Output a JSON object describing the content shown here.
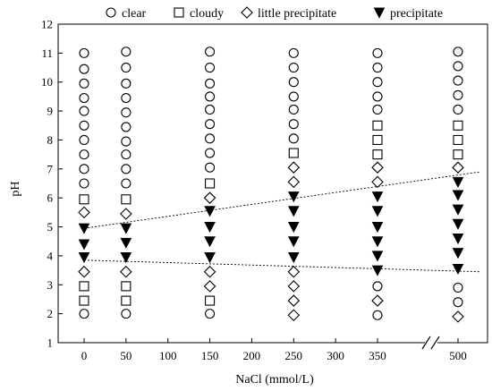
{
  "chart_data": {
    "type": "scatter",
    "title": "",
    "xlabel": "NaCl (mmol/L)",
    "ylabel": "pH",
    "xticks": [
      "0",
      "50",
      "100",
      "150",
      "200",
      "250",
      "300",
      "350",
      "500"
    ],
    "yticks": [
      "1",
      "2",
      "3",
      "4",
      "5",
      "6",
      "7",
      "8",
      "9",
      "10",
      "11",
      "12"
    ],
    "ylim": [
      1,
      12
    ],
    "axis_break": "between 350 and 500",
    "legend": {
      "position": "top",
      "entries": [
        {
          "name": "clear",
          "marker": "open-circle"
        },
        {
          "name": "cloudy",
          "marker": "open-square"
        },
        {
          "name": "little precipitate",
          "marker": "open-diamond"
        },
        {
          "name": "precipitate",
          "marker": "filled-down-triangle"
        }
      ]
    },
    "columns": [
      {
        "nacl": 0,
        "points": [
          {
            "ph": 2.0,
            "c": "clear"
          },
          {
            "ph": 2.45,
            "c": "cloudy"
          },
          {
            "ph": 2.95,
            "c": "cloudy"
          },
          {
            "ph": 3.45,
            "c": "little precipitate"
          },
          {
            "ph": 3.95,
            "c": "precipitate"
          },
          {
            "ph": 4.4,
            "c": "precipitate"
          },
          {
            "ph": 4.95,
            "c": "precipitate"
          },
          {
            "ph": 5.5,
            "c": "little precipitate"
          },
          {
            "ph": 5.95,
            "c": "cloudy"
          },
          {
            "ph": 6.5,
            "c": "clear"
          },
          {
            "ph": 7.0,
            "c": "clear"
          },
          {
            "ph": 7.5,
            "c": "clear"
          },
          {
            "ph": 8.0,
            "c": "clear"
          },
          {
            "ph": 8.5,
            "c": "clear"
          },
          {
            "ph": 9.0,
            "c": "clear"
          },
          {
            "ph": 9.45,
            "c": "clear"
          },
          {
            "ph": 9.95,
            "c": "clear"
          },
          {
            "ph": 10.45,
            "c": "clear"
          },
          {
            "ph": 11.0,
            "c": "clear"
          }
        ]
      },
      {
        "nacl": 50,
        "points": [
          {
            "ph": 2.0,
            "c": "clear"
          },
          {
            "ph": 2.45,
            "c": "cloudy"
          },
          {
            "ph": 2.95,
            "c": "cloudy"
          },
          {
            "ph": 3.45,
            "c": "little precipitate"
          },
          {
            "ph": 3.95,
            "c": "precipitate"
          },
          {
            "ph": 4.45,
            "c": "precipitate"
          },
          {
            "ph": 4.95,
            "c": "precipitate"
          },
          {
            "ph": 5.45,
            "c": "little precipitate"
          },
          {
            "ph": 5.95,
            "c": "cloudy"
          },
          {
            "ph": 6.5,
            "c": "clear"
          },
          {
            "ph": 7.0,
            "c": "clear"
          },
          {
            "ph": 7.5,
            "c": "clear"
          },
          {
            "ph": 7.95,
            "c": "clear"
          },
          {
            "ph": 8.45,
            "c": "clear"
          },
          {
            "ph": 8.95,
            "c": "clear"
          },
          {
            "ph": 9.45,
            "c": "clear"
          },
          {
            "ph": 9.95,
            "c": "clear"
          },
          {
            "ph": 10.5,
            "c": "clear"
          },
          {
            "ph": 11.05,
            "c": "clear"
          }
        ]
      },
      {
        "nacl": 150,
        "points": [
          {
            "ph": 2.0,
            "c": "clear"
          },
          {
            "ph": 2.45,
            "c": "cloudy"
          },
          {
            "ph": 2.95,
            "c": "little precipitate"
          },
          {
            "ph": 3.45,
            "c": "little precipitate"
          },
          {
            "ph": 3.95,
            "c": "precipitate"
          },
          {
            "ph": 4.5,
            "c": "precipitate"
          },
          {
            "ph": 5.0,
            "c": "precipitate"
          },
          {
            "ph": 5.55,
            "c": "precipitate"
          },
          {
            "ph": 6.0,
            "c": "little precipitate"
          },
          {
            "ph": 6.5,
            "c": "cloudy"
          },
          {
            "ph": 7.05,
            "c": "clear"
          },
          {
            "ph": 7.55,
            "c": "clear"
          },
          {
            "ph": 8.05,
            "c": "clear"
          },
          {
            "ph": 8.55,
            "c": "clear"
          },
          {
            "ph": 9.05,
            "c": "clear"
          },
          {
            "ph": 9.5,
            "c": "clear"
          },
          {
            "ph": 9.95,
            "c": "clear"
          },
          {
            "ph": 10.5,
            "c": "clear"
          },
          {
            "ph": 11.05,
            "c": "clear"
          }
        ]
      },
      {
        "nacl": 250,
        "points": [
          {
            "ph": 1.95,
            "c": "little precipitate"
          },
          {
            "ph": 2.45,
            "c": "little precipitate"
          },
          {
            "ph": 2.95,
            "c": "little precipitate"
          },
          {
            "ph": 3.45,
            "c": "little precipitate"
          },
          {
            "ph": 3.95,
            "c": "precipitate"
          },
          {
            "ph": 4.5,
            "c": "precipitate"
          },
          {
            "ph": 5.0,
            "c": "precipitate"
          },
          {
            "ph": 5.55,
            "c": "precipitate"
          },
          {
            "ph": 6.05,
            "c": "precipitate"
          },
          {
            "ph": 6.55,
            "c": "little precipitate"
          },
          {
            "ph": 7.05,
            "c": "little precipitate"
          },
          {
            "ph": 7.55,
            "c": "cloudy"
          },
          {
            "ph": 8.05,
            "c": "clear"
          },
          {
            "ph": 8.55,
            "c": "clear"
          },
          {
            "ph": 9.05,
            "c": "clear"
          },
          {
            "ph": 9.5,
            "c": "clear"
          },
          {
            "ph": 10.0,
            "c": "clear"
          },
          {
            "ph": 10.5,
            "c": "clear"
          },
          {
            "ph": 11.0,
            "c": "clear"
          }
        ]
      },
      {
        "nacl": 350,
        "points": [
          {
            "ph": 1.95,
            "c": "clear"
          },
          {
            "ph": 2.45,
            "c": "little precipitate"
          },
          {
            "ph": 2.95,
            "c": "clear"
          },
          {
            "ph": 3.5,
            "c": "precipitate"
          },
          {
            "ph": 4.0,
            "c": "precipitate"
          },
          {
            "ph": 4.5,
            "c": "precipitate"
          },
          {
            "ph": 5.0,
            "c": "precipitate"
          },
          {
            "ph": 5.55,
            "c": "precipitate"
          },
          {
            "ph": 6.05,
            "c": "precipitate"
          },
          {
            "ph": 6.55,
            "c": "little precipitate"
          },
          {
            "ph": 7.05,
            "c": "little precipitate"
          },
          {
            "ph": 7.5,
            "c": "cloudy"
          },
          {
            "ph": 8.0,
            "c": "cloudy"
          },
          {
            "ph": 8.5,
            "c": "cloudy"
          },
          {
            "ph": 9.05,
            "c": "clear"
          },
          {
            "ph": 9.5,
            "c": "clear"
          },
          {
            "ph": 10.0,
            "c": "clear"
          },
          {
            "ph": 10.5,
            "c": "clear"
          },
          {
            "ph": 11.0,
            "c": "clear"
          }
        ]
      },
      {
        "nacl": 500,
        "points": [
          {
            "ph": 1.9,
            "c": "little precipitate"
          },
          {
            "ph": 2.4,
            "c": "clear"
          },
          {
            "ph": 2.9,
            "c": "clear"
          },
          {
            "ph": 3.55,
            "c": "precipitate"
          },
          {
            "ph": 4.1,
            "c": "precipitate"
          },
          {
            "ph": 4.6,
            "c": "precipitate"
          },
          {
            "ph": 5.1,
            "c": "precipitate"
          },
          {
            "ph": 5.6,
            "c": "precipitate"
          },
          {
            "ph": 6.1,
            "c": "precipitate"
          },
          {
            "ph": 6.55,
            "c": "precipitate"
          },
          {
            "ph": 7.05,
            "c": "little precipitate"
          },
          {
            "ph": 7.5,
            "c": "cloudy"
          },
          {
            "ph": 8.0,
            "c": "cloudy"
          },
          {
            "ph": 8.5,
            "c": "cloudy"
          },
          {
            "ph": 9.05,
            "c": "clear"
          },
          {
            "ph": 9.55,
            "c": "clear"
          },
          {
            "ph": 10.05,
            "c": "clear"
          },
          {
            "ph": 10.55,
            "c": "clear"
          },
          {
            "ph": 11.05,
            "c": "clear"
          }
        ]
      }
    ],
    "trend_lines": [
      {
        "style": "dotted",
        "from": {
          "nacl": 0,
          "ph": 4.95
        },
        "to": {
          "nacl": 500,
          "ph": 6.9
        }
      },
      {
        "style": "dotted",
        "from": {
          "nacl": 0,
          "ph": 3.85
        },
        "to": {
          "nacl": 500,
          "ph": 3.45
        }
      }
    ]
  }
}
